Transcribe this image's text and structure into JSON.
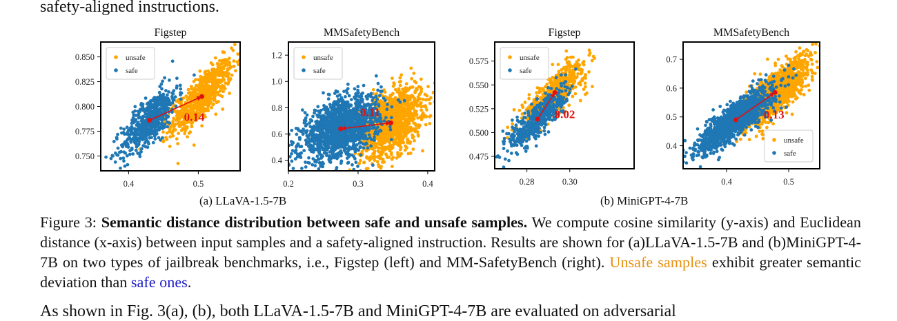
{
  "text": {
    "top_line": "safety-aligned instructions.",
    "bottom_line": "As shown in Fig. 3(a), (b), both LLaVA-1.5-7B and MiniGPT-4-7B are evaluated on adversarial"
  },
  "figure": {
    "sub_a": "(a) LLaVA-1.5-7B",
    "sub_b": "(b) MiniGPT-4-7B",
    "colors": {
      "unsafe": "#FFA500",
      "safe": "#1f77b4",
      "arrow": "#e01010"
    }
  },
  "caption": {
    "prefix": "Figure 3:",
    "bold": "Semantic distance distribution between safe and unsafe samples.",
    "body": "We compute cosine similarity (y-axis) and Euclidean distance (x-axis) between input samples and a safety-aligned instruction. Results are shown for (a)LLaVA-1.5-7B and (b)MiniGPT-4-7B on two types of jailbreak benchmarks, i.e., Figstep (left) and MM-SafetyBench (right).",
    "unsafe_phrase": "Unsafe samples",
    "middle": "exhibit greater semantic deviation than",
    "safe_phrase": "safe ones",
    "end": "."
  },
  "chart_data": [
    {
      "type": "scatter",
      "title": "Figstep",
      "model": "LLaVA-1.5-7B",
      "xlim": [
        0.36,
        0.56
      ],
      "ylim": [
        0.735,
        0.865
      ],
      "xticks": [
        0.4,
        0.5
      ],
      "xtick_labels": [
        "0.4",
        "0.5"
      ],
      "yticks": [
        0.75,
        0.775,
        0.8,
        0.825,
        0.85
      ],
      "ytick_labels": [
        "0.750",
        "0.775",
        "0.800",
        "0.825",
        "0.850"
      ],
      "legend": [
        "unsafe",
        "safe"
      ],
      "legend_position": "top-left",
      "series": [
        {
          "name": "unsafe",
          "center": [
            0.505,
            0.81
          ],
          "spread": [
            0.022,
            0.018
          ],
          "corr": 0.8,
          "count": 700
        },
        {
          "name": "safe",
          "center": [
            0.43,
            0.786
          ],
          "spread": [
            0.02,
            0.017
          ],
          "corr": 0.75,
          "count": 600
        }
      ],
      "centroid_arrow": {
        "from": [
          0.43,
          0.786
        ],
        "to": [
          0.505,
          0.81
        ],
        "label": "0.14"
      }
    },
    {
      "type": "scatter",
      "title": "MMSafetyBench",
      "model": "LLaVA-1.5-7B",
      "xlim": [
        0.2,
        0.41
      ],
      "ylim": [
        0.32,
        1.3
      ],
      "xticks": [
        0.2,
        0.3,
        0.4
      ],
      "xtick_labels": [
        "0.2",
        "0.3",
        "0.4"
      ],
      "yticks": [
        0.4,
        0.6,
        0.8,
        1.0,
        1.2
      ],
      "ytick_labels": [
        "0.4",
        "0.6",
        "0.8",
        "1.0",
        "1.2"
      ],
      "legend": [
        "unsafe",
        "safe"
      ],
      "legend_position": "top-left",
      "series": [
        {
          "name": "unsafe",
          "center": [
            0.347,
            0.685
          ],
          "spread": [
            0.022,
            0.13
          ],
          "corr": 0.45,
          "count": 1300
        },
        {
          "name": "safe",
          "center": [
            0.275,
            0.64
          ],
          "spread": [
            0.028,
            0.12
          ],
          "corr": 0.45,
          "count": 1500
        }
      ],
      "centroid_arrow": {
        "from": [
          0.347,
          0.685
        ],
        "to": [
          0.275,
          0.64
        ],
        "label": "0.11",
        "double": true
      }
    },
    {
      "type": "scatter",
      "title": "Figstep",
      "model": "MiniGPT-4-7B",
      "xlim": [
        0.265,
        0.33
      ],
      "ylim": [
        0.462,
        0.595
      ],
      "xticks": [
        0.28,
        0.3
      ],
      "xtick_labels": [
        "0.28",
        "0.30"
      ],
      "yticks": [
        0.475,
        0.5,
        0.525,
        0.55,
        0.575
      ],
      "ytick_labels": [
        "0.475",
        "0.500",
        "0.525",
        "0.550",
        "0.575"
      ],
      "legend": [
        "unsafe",
        "safe"
      ],
      "legend_position": "top-left",
      "series": [
        {
          "name": "unsafe",
          "center": [
            0.293,
            0.542
          ],
          "spread": [
            0.0075,
            0.017
          ],
          "corr": 0.8,
          "count": 550
        },
        {
          "name": "safe",
          "center": [
            0.285,
            0.514
          ],
          "spread": [
            0.0065,
            0.016
          ],
          "corr": 0.8,
          "count": 500
        }
      ],
      "centroid_arrow": {
        "from": [
          0.285,
          0.514
        ],
        "to": [
          0.293,
          0.542
        ],
        "label": "0.02"
      }
    },
    {
      "type": "scatter",
      "title": "MMSafetyBench",
      "model": "MiniGPT-4-7B",
      "xlim": [
        0.33,
        0.55
      ],
      "ylim": [
        0.32,
        0.76
      ],
      "xticks": [
        0.4,
        0.5
      ],
      "xtick_labels": [
        "0.4",
        "0.5"
      ],
      "yticks": [
        0.4,
        0.5,
        0.6,
        0.7
      ],
      "ytick_labels": [
        "0.4",
        "0.5",
        "0.6",
        "0.7"
      ],
      "legend": [
        "unsafe",
        "safe"
      ],
      "legend_position": "bottom-right",
      "series": [
        {
          "name": "unsafe",
          "center": [
            0.478,
            0.585
          ],
          "spread": [
            0.028,
            0.06
          ],
          "corr": 0.8,
          "count": 1300
        },
        {
          "name": "safe",
          "center": [
            0.415,
            0.49
          ],
          "spread": [
            0.03,
            0.055
          ],
          "corr": 0.85,
          "count": 1300
        }
      ],
      "centroid_arrow": {
        "from": [
          0.415,
          0.49
        ],
        "to": [
          0.478,
          0.585
        ],
        "label": "0.13"
      }
    }
  ]
}
